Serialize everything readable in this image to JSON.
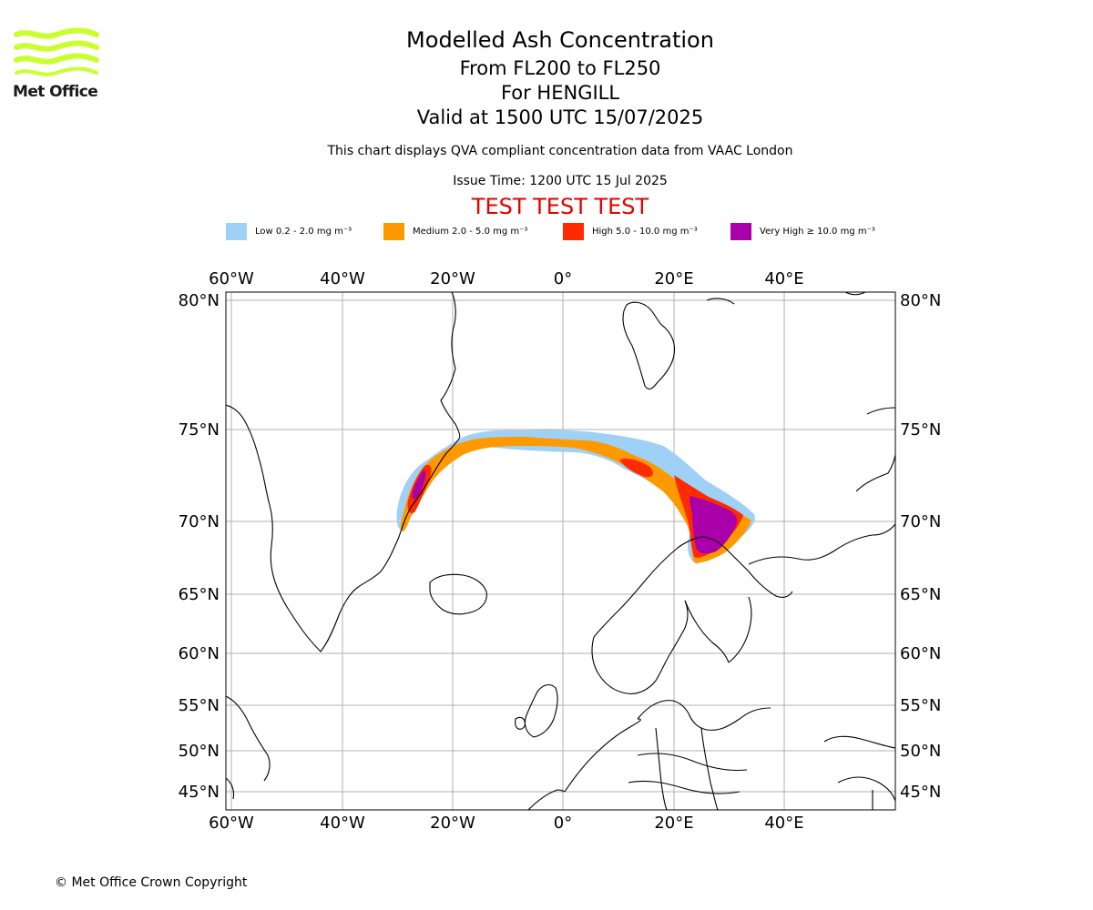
{
  "header": {
    "title": "Modelled Ash Concentration",
    "flight_levels": "From FL200 to FL250",
    "volcano": "For HENGILL",
    "valid_time": "Valid at 1500 UTC 15/07/2025",
    "description": "This chart displays QVA compliant concentration data from VAAC London",
    "issue_time": "Issue Time: 1200 UTC 15 Jul 2025",
    "test_banner": "TEST TEST TEST"
  },
  "logo": {
    "text": "Met Office",
    "color": "#c8ff2d"
  },
  "legend": [
    {
      "label": "Low 0.2 - 2.0 mg m⁻³",
      "color": "#9fd1f7"
    },
    {
      "label": "Medium 2.0 - 5.0 mg m⁻³",
      "color": "#ff9900"
    },
    {
      "label": "High 5.0 - 10.0 mg m⁻³",
      "color": "#ff2a00"
    },
    {
      "label": "Very High ≥ 10.0 mg m⁻³",
      "color": "#aa00aa"
    }
  ],
  "map": {
    "projection": "equirectangular-like (longitude linear, latitude stretched)",
    "gridlines": true,
    "longitude_labels": [
      "60°W",
      "40°W",
      "20°W",
      "0°",
      "20°E",
      "40°E"
    ],
    "latitude_labels": [
      "80°N",
      "75°N",
      "70°N",
      "65°N",
      "60°N",
      "55°N",
      "50°N",
      "45°N"
    ],
    "ash_cloud": "Band from east Greenland coast across the Greenland/Norwegian Sea at ~74°N to northern Scandinavia, highest concentrations over northern Finland/Kola region",
    "colors": {
      "grid": "#b0b0b0",
      "coast": "#000000"
    }
  },
  "footer": {
    "copyright": "© Met Office Crown Copyright"
  }
}
